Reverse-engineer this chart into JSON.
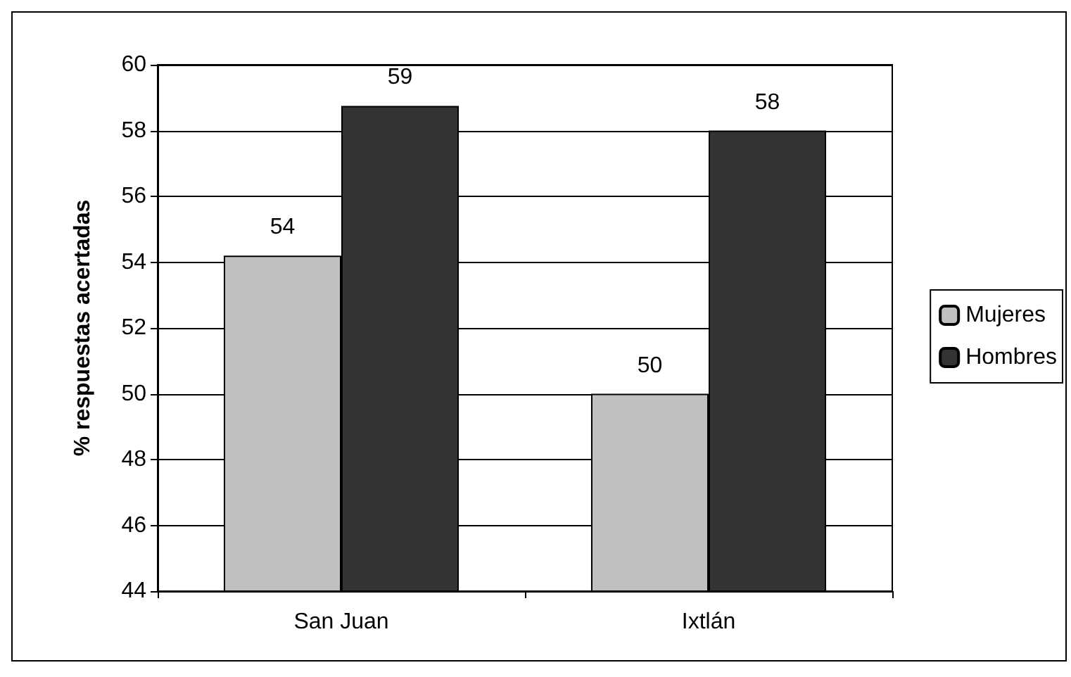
{
  "chart_data": {
    "type": "bar",
    "ylabel": "% respuestas acertadas",
    "categories": [
      "San Juan",
      "Ixtlán"
    ],
    "series": [
      {
        "name": "Mujeres",
        "color": "#c0c0c0",
        "values": [
          54.2,
          50
        ],
        "value_labels": [
          "54",
          "50"
        ]
      },
      {
        "name": "Hombres",
        "color": "#333333",
        "values": [
          58.75,
          58
        ],
        "value_labels": [
          "59",
          "58"
        ]
      }
    ],
    "ylim": [
      44,
      60
    ],
    "yticks": [
      44,
      46,
      48,
      50,
      52,
      54,
      56,
      58,
      60
    ],
    "grid": "y",
    "legend": "right"
  }
}
